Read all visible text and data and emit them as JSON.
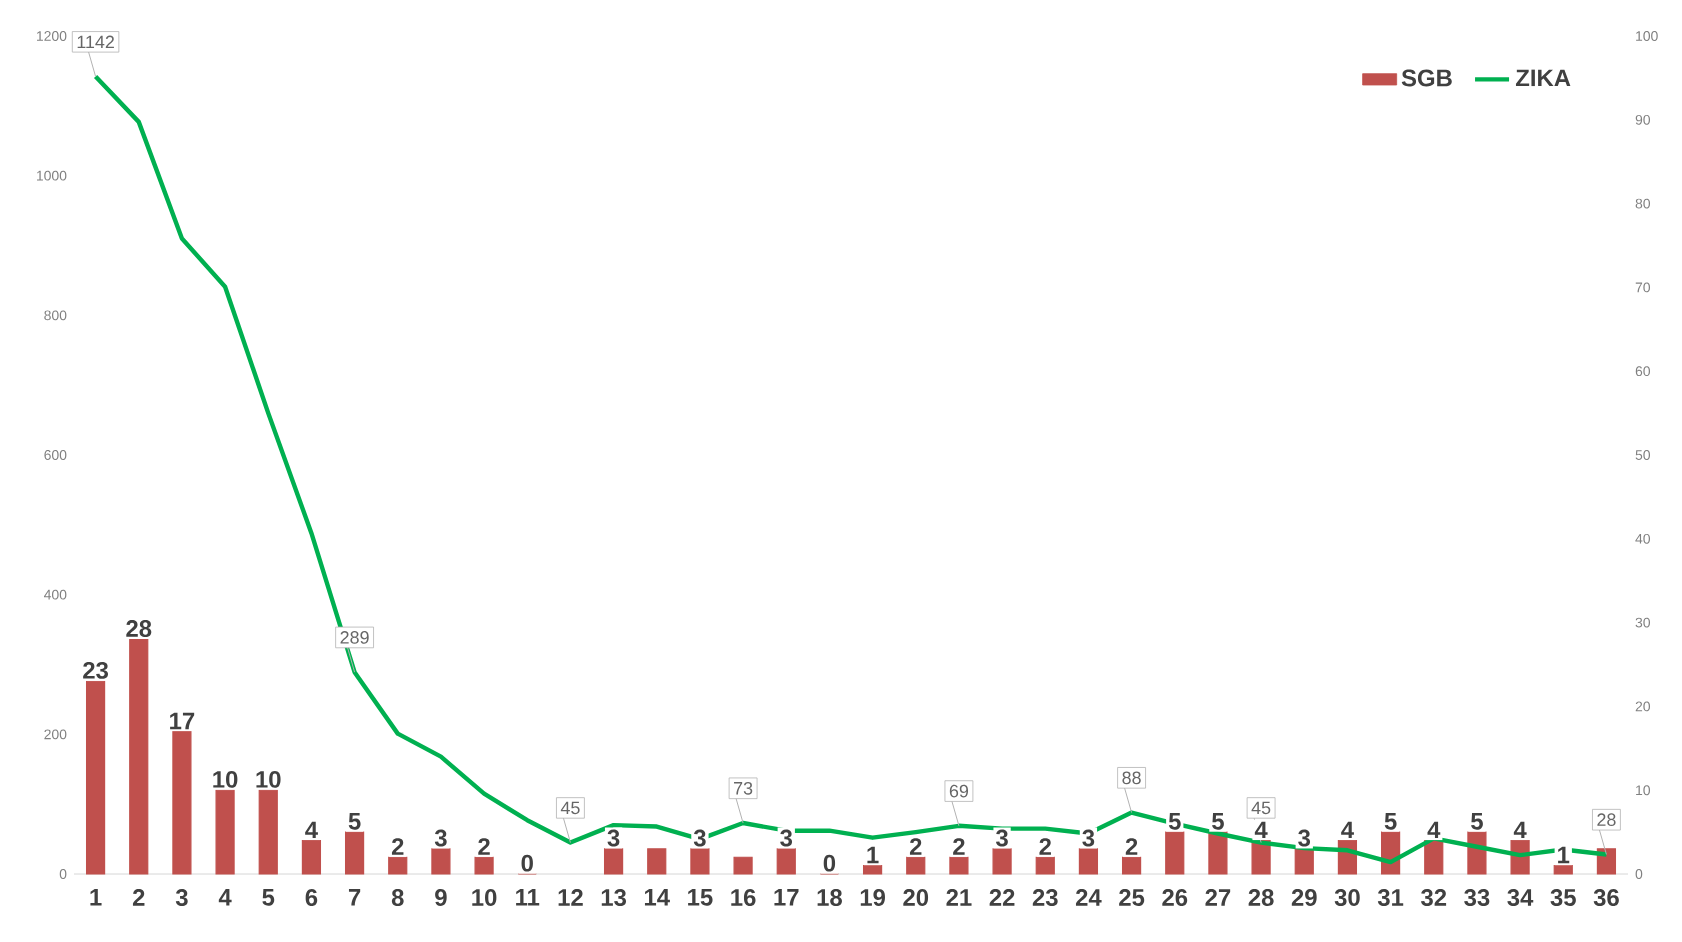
{
  "chart_data": {
    "type": "bar",
    "categories": [
      "1",
      "2",
      "3",
      "4",
      "5",
      "6",
      "7",
      "8",
      "9",
      "10",
      "11",
      "12",
      "13",
      "14",
      "15",
      "16",
      "17",
      "18",
      "19",
      "20",
      "21",
      "22",
      "23",
      "24",
      "25",
      "26",
      "27",
      "28",
      "29",
      "30",
      "31",
      "32",
      "33",
      "34",
      "35",
      "36"
    ],
    "series": [
      {
        "name": "SGB",
        "axis": "y2",
        "color": "#c0504d",
        "values": [
          23,
          28,
          17,
          10,
          10,
          4,
          5,
          2,
          3,
          2,
          0,
          null,
          3,
          3,
          3,
          2,
          3,
          0,
          1,
          2,
          2,
          3,
          2,
          3,
          2,
          5,
          5,
          4,
          3,
          4,
          5,
          4,
          5,
          4,
          1,
          3
        ],
        "value_labels": [
          "23",
          "28",
          "17",
          "10",
          "10",
          "4",
          "5",
          "2",
          "3",
          "2",
          "0",
          null,
          "3",
          null,
          "3",
          null,
          "3",
          "0",
          "1",
          "2",
          "2",
          "3",
          "2",
          "3",
          "2",
          "5",
          "5",
          "4",
          "3",
          "4",
          "5",
          "4",
          "5",
          "4",
          "1",
          null
        ]
      },
      {
        "name": "ZIKA",
        "type": "line",
        "color": "#00b050",
        "values": [
          1142,
          1077,
          910,
          841,
          660,
          488,
          289,
          201,
          168,
          115,
          77,
          45,
          70,
          68,
          50,
          73,
          62,
          62,
          52,
          60,
          69,
          65,
          65,
          58,
          88,
          72,
          58,
          45,
          37,
          34,
          17,
          51,
          39,
          27,
          35,
          28
        ],
        "value_labels": [
          "1142",
          null,
          null,
          null,
          null,
          null,
          "289",
          null,
          null,
          null,
          null,
          "45",
          null,
          null,
          null,
          "73",
          null,
          null,
          null,
          null,
          "69",
          null,
          null,
          null,
          "88",
          null,
          null,
          "45",
          null,
          null,
          null,
          null,
          null,
          null,
          null,
          "28"
        ]
      }
    ],
    "ylim": [
      0,
      1200
    ],
    "yticks": [
      0,
      200,
      400,
      600,
      800,
      1000,
      1200
    ],
    "y2lim": [
      0,
      100
    ],
    "y2ticks": [
      0,
      10,
      20,
      30,
      40,
      50,
      60,
      70,
      80,
      90,
      100
    ],
    "legend": "top right",
    "grid": false
  }
}
